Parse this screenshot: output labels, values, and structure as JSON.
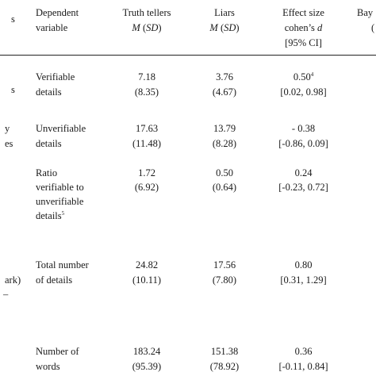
{
  "header": {
    "left_fragment": "s",
    "dependent_variable": [
      "Dependent",
      "variable"
    ],
    "truth_tellers": "Truth tellers",
    "liars": "Liars",
    "msd_m": "M",
    "msd_sd": "SD",
    "effect_size": [
      "Effect size",
      "cohen’s",
      "d",
      "[95% CI]"
    ],
    "bayes_fragment": "Bay",
    "bayes_fragment2": "("
  },
  "left_fragments": [
    "s",
    "y",
    "es",
    "ark)",
    "–"
  ],
  "rows": [
    {
      "label": [
        "Verifiable",
        "details"
      ],
      "truth": [
        "7.18",
        "(8.35)"
      ],
      "liars": [
        "3.76",
        "(4.67)"
      ],
      "effect": [
        "0.50",
        "[0.02, 0.98]"
      ],
      "effect_sup": "4"
    },
    {
      "label": [
        "Unverifiable",
        "details"
      ],
      "truth": [
        "17.63",
        "(11.48)"
      ],
      "liars": [
        "13.79",
        "(8.28)"
      ],
      "effect": [
        "- 0.38",
        "[-0.86, 0.09]"
      ]
    },
    {
      "label": [
        "Ratio",
        "verifiable to",
        "unverifiable",
        "details"
      ],
      "label_sup": "5",
      "truth": [
        "1.72",
        "(6.92)"
      ],
      "liars": [
        "0.50",
        "(0.64)"
      ],
      "effect": [
        "0.24",
        "[-0.23, 0.72]"
      ]
    },
    {
      "label": [
        "Total number",
        "of details"
      ],
      "truth": [
        "24.82",
        "(10.11)"
      ],
      "liars": [
        "17.56",
        "(7.80)"
      ],
      "effect": [
        "0.80",
        "[0.31, 1.29]"
      ]
    },
    {
      "label": [
        "Number of",
        "words"
      ],
      "truth": [
        "183.24",
        "(95.39)"
      ],
      "liars": [
        "151.38",
        "(78.92)"
      ],
      "effect": [
        "0.36",
        "[-0.11, 0.84]"
      ]
    }
  ]
}
